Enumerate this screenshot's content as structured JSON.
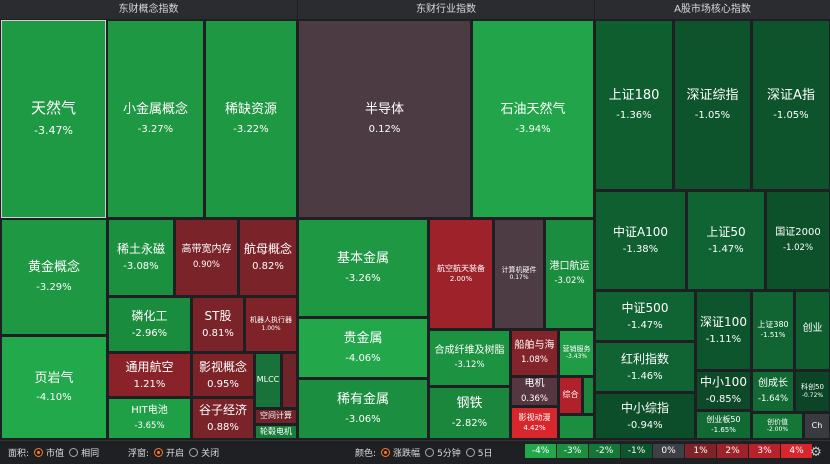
{
  "panels": [
    {
      "title": "东财概念指数",
      "tiles": [
        {
          "name": "天然气",
          "pct": "-3.47%",
          "color": "#1f9a44"
        },
        {
          "name": "小金属概念",
          "pct": "-3.27%",
          "color": "#1e9842"
        },
        {
          "name": "稀缺资源",
          "pct": "-3.22%",
          "color": "#1e9842"
        },
        {
          "name": "黄金概念",
          "pct": "-3.29%",
          "color": "#1e9842"
        },
        {
          "name": "稀土永磁",
          "pct": "-3.08%",
          "color": "#1b9140"
        },
        {
          "name": "高带宽内存",
          "pct": "0.90%",
          "color": "#7a2328"
        },
        {
          "name": "航母概念",
          "pct": "0.82%",
          "color": "#7a2328"
        },
        {
          "name": "页岩气",
          "pct": "-4.10%",
          "color": "#22a94b"
        },
        {
          "name": "磷化工",
          "pct": "-2.96%",
          "color": "#1a8c3d"
        },
        {
          "name": "ST股",
          "pct": "0.81%",
          "color": "#7a2328"
        },
        {
          "name": "机器人执行器",
          "pct": "1.00%",
          "color": "#7f2329"
        },
        {
          "name": "通用航空",
          "pct": "1.21%",
          "color": "#8a2329"
        },
        {
          "name": "影视概念",
          "pct": "0.95%",
          "color": "#7d2328"
        },
        {
          "name": "MLCC",
          "pct": "",
          "color": "#17733a"
        },
        {
          "name": "",
          "pct": "",
          "color": "#6e2429"
        },
        {
          "name": "HIT电池",
          "pct": "-3.65%",
          "color": "#1f9f46"
        },
        {
          "name": "谷子经济",
          "pct": "0.88%",
          "color": "#7a2328"
        },
        {
          "name": "空间计算",
          "pct": "",
          "color": "#6e2429"
        },
        {
          "name": "轮毂电机",
          "pct": "",
          "color": "#1a7e3b"
        }
      ]
    },
    {
      "title": "东财行业指数",
      "tiles": [
        {
          "name": "半导体",
          "pct": "0.12%",
          "color": "#4d3b44"
        },
        {
          "name": "石油天然气",
          "pct": "-3.94%",
          "color": "#22a54a"
        },
        {
          "name": "基本金属",
          "pct": "-3.26%",
          "color": "#1e9842"
        },
        {
          "name": "航空航天装备",
          "pct": "2.00%",
          "color": "#9d222a"
        },
        {
          "name": "计算机硬件",
          "pct": "0.17%",
          "color": "#4e3c45"
        },
        {
          "name": "港口航运",
          "pct": "-3.02%",
          "color": "#1b8d3f"
        },
        {
          "name": "贵金属",
          "pct": "-4.06%",
          "color": "#22a84b"
        },
        {
          "name": "合成纤维及树脂",
          "pct": "-3.12%",
          "color": "#1c9340"
        },
        {
          "name": "船舶与海",
          "pct": "1.08%",
          "color": "#83232a"
        },
        {
          "name": "营销服务",
          "pct": "-3.43%",
          "color": "#1f9c45"
        },
        {
          "name": "电机",
          "pct": "0.36%",
          "color": "#563640"
        },
        {
          "name": "综合",
          "pct": "",
          "color": "#b0212a"
        },
        {
          "name": "稀有金属",
          "pct": "-3.06%",
          "color": "#1b8f3f"
        },
        {
          "name": "钢铁",
          "pct": "-2.82%",
          "color": "#1a873c"
        },
        {
          "name": "影视动漫",
          "pct": "4.42%",
          "color": "#d8262d"
        },
        {
          "name": "",
          "pct": "",
          "color": "#1a873c"
        },
        {
          "name": "",
          "pct": "",
          "color": "#1b8f3f"
        }
      ]
    },
    {
      "title": "A股市场核心指数",
      "tiles": [
        {
          "name": "上证180",
          "pct": "-1.36%",
          "color": "#0f5e30"
        },
        {
          "name": "深证综指",
          "pct": "-1.05%",
          "color": "#0d532b"
        },
        {
          "name": "深证A指",
          "pct": "-1.05%",
          "color": "#0d532b"
        },
        {
          "name": "中证A100",
          "pct": "-1.38%",
          "color": "#0f5f30"
        },
        {
          "name": "上证50",
          "pct": "-1.47%",
          "color": "#106332"
        },
        {
          "name": "国证2000",
          "pct": "-1.02%",
          "color": "#0d512a"
        },
        {
          "name": "中证500",
          "pct": "-1.47%",
          "color": "#106332"
        },
        {
          "name": "深证100",
          "pct": "-1.11%",
          "color": "#0d552c"
        },
        {
          "name": "上证380",
          "pct": "-1.51%",
          "color": "#106533"
        },
        {
          "name": "创业",
          "pct": "",
          "color": "#0f5e30"
        },
        {
          "name": "红利指数",
          "pct": "-1.46%",
          "color": "#106332"
        },
        {
          "name": "中小100",
          "pct": "-0.85%",
          "color": "#0c4a28"
        },
        {
          "name": "创成长",
          "pct": "-1.64%",
          "color": "#116934"
        },
        {
          "name": "科创50",
          "pct": "-0.72%",
          "color": "#0b4426"
        },
        {
          "name": "中小综指",
          "pct": "-0.94%",
          "color": "#0c4e29"
        },
        {
          "name": "创业板50",
          "pct": "-1.65%",
          "color": "#116934"
        },
        {
          "name": "创价值",
          "pct": "-2.00%",
          "color": "#137737"
        },
        {
          "name": "Ch",
          "pct": "",
          "color": "#3a3b3f"
        }
      ]
    }
  ],
  "bottombar": {
    "area_label": "面积:",
    "area_opt1": "市值",
    "area_opt2": "相同",
    "float_label": "浮窗:",
    "float_opt1": "开启",
    "float_opt2": "关闭",
    "color_label": "颜色:",
    "color_opt1": "涨跌幅",
    "color_opt2": "5分钟",
    "color_opt3": "5日",
    "legend": [
      {
        "label": "-4%",
        "color": "#22a84b"
      },
      {
        "label": "-3%",
        "color": "#1b8f3f"
      },
      {
        "label": "-2%",
        "color": "#137737"
      },
      {
        "label": "-1%",
        "color": "#0d552c"
      },
      {
        "label": "0%",
        "color": "#3f4046"
      },
      {
        "label": "1%",
        "color": "#7f2329"
      },
      {
        "label": "2%",
        "color": "#9d222a"
      },
      {
        "label": "3%",
        "color": "#b8232b"
      },
      {
        "label": "4%",
        "color": "#d8262d"
      }
    ],
    "gear_icon": "gear-icon"
  }
}
